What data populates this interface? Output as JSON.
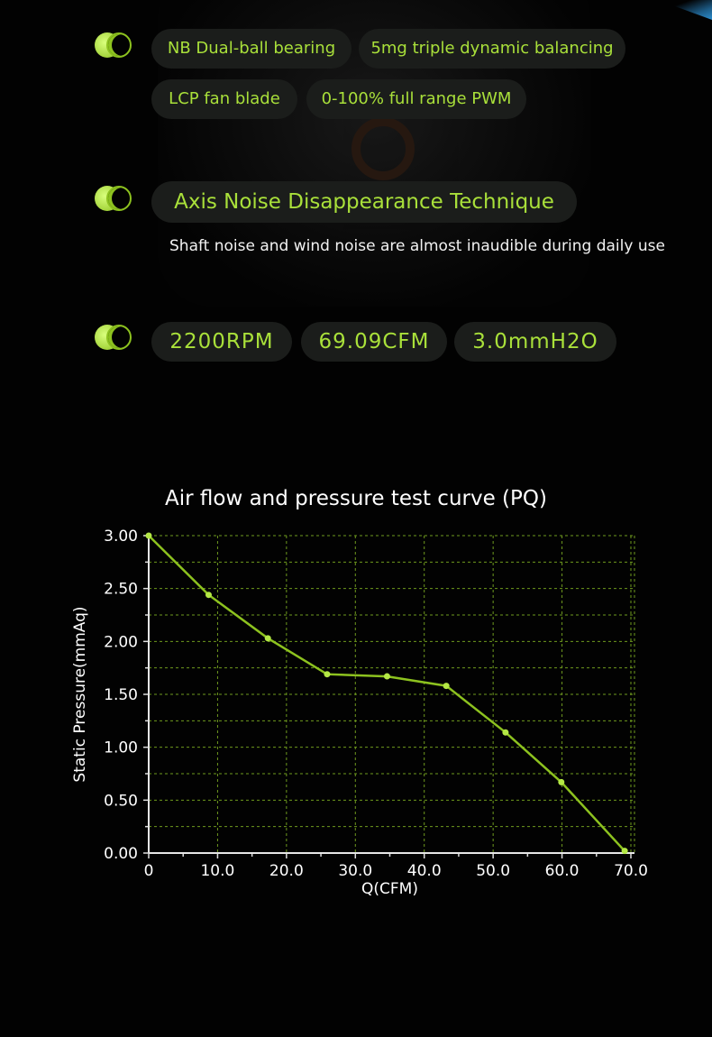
{
  "features": {
    "bearing": "NB Dual-ball bearing",
    "balancing": "5mg triple dynamic balancing",
    "blade": "LCP fan blade",
    "pwm": "0-100% full range PWM"
  },
  "noise": {
    "title": "Axis Noise Disappearance Technique",
    "description": "Shaft noise and wind noise are almost inaudible during daily use"
  },
  "specs": {
    "rpm": "2200RPM",
    "cfm": "69.09CFM",
    "pressure": "3.0mmH2O"
  },
  "colors": {
    "accent_green": "#a9e03a",
    "pill_bg": "#1b1d1b",
    "line": "#8dc21f"
  },
  "chart_data": {
    "type": "line",
    "title": "Air flow and pressure test curve (PQ)",
    "xlabel": "Q(CFM)",
    "ylabel": "Static Pressure(mmAq)",
    "xlim": [
      0,
      70
    ],
    "ylim": [
      0,
      3
    ],
    "x_ticks": [
      "0",
      "10.0",
      "20.0",
      "30.0",
      "40.0",
      "50.0",
      "60.0",
      "70.0"
    ],
    "y_ticks": [
      "0.00",
      "0.50",
      "1.00",
      "1.50",
      "2.00",
      "2.50",
      "3.00"
    ],
    "grid": true,
    "series": [
      {
        "points": [
          [
            0,
            3.0
          ],
          [
            8.7,
            2.44
          ],
          [
            17.3,
            2.03
          ],
          [
            25.9,
            1.69
          ],
          [
            34.6,
            1.67
          ],
          [
            43.2,
            1.58
          ],
          [
            51.8,
            1.14
          ],
          [
            59.9,
            0.67
          ],
          [
            69.1,
            0.02
          ]
        ]
      }
    ]
  }
}
